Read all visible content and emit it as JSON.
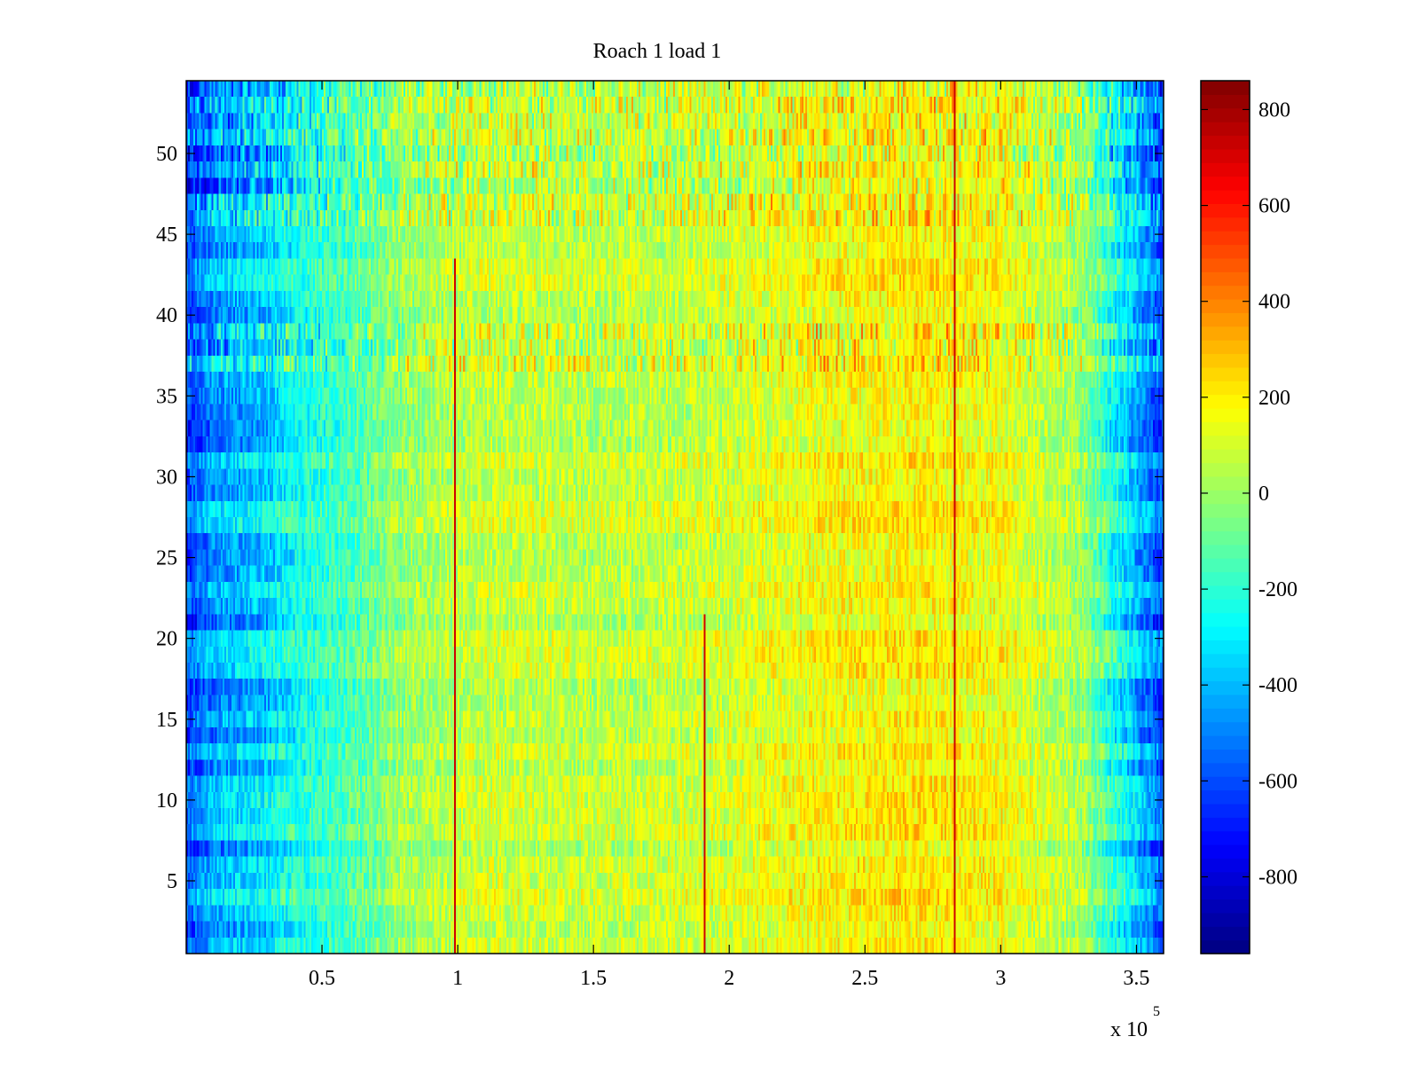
{
  "chart_data": {
    "type": "heatmap",
    "title": "Roach 1 load 1",
    "xlabel": "",
    "ylabel": "",
    "x_exponent_label": "x 10",
    "x_exponent": "5",
    "xlim": [
      0,
      360000
    ],
    "ylim": [
      0.5,
      54.5
    ],
    "rows": 54,
    "x_ticks": [
      {
        "value": 50000,
        "label": "0.5"
      },
      {
        "value": 100000,
        "label": "1"
      },
      {
        "value": 150000,
        "label": "1.5"
      },
      {
        "value": 200000,
        "label": "2"
      },
      {
        "value": 250000,
        "label": "2.5"
      },
      {
        "value": 300000,
        "label": "3"
      },
      {
        "value": 350000,
        "label": "3.5"
      }
    ],
    "y_ticks": [
      {
        "value": 5,
        "label": "5"
      },
      {
        "value": 10,
        "label": "10"
      },
      {
        "value": 15,
        "label": "15"
      },
      {
        "value": 20,
        "label": "20"
      },
      {
        "value": 25,
        "label": "25"
      },
      {
        "value": 30,
        "label": "30"
      },
      {
        "value": 35,
        "label": "35"
      },
      {
        "value": 40,
        "label": "40"
      },
      {
        "value": 45,
        "label": "45"
      },
      {
        "value": 50,
        "label": "50"
      }
    ],
    "colorbar": {
      "colormap": "jet",
      "clim": [
        -960,
        860
      ],
      "ticks": [
        {
          "value": 800,
          "label": "800"
        },
        {
          "value": 600,
          "label": "600"
        },
        {
          "value": 400,
          "label": "400"
        },
        {
          "value": 200,
          "label": "200"
        },
        {
          "value": 0,
          "label": "0"
        },
        {
          "value": -200,
          "label": "-200"
        },
        {
          "value": -400,
          "label": "-400"
        },
        {
          "value": -600,
          "label": "-600"
        },
        {
          "value": -800,
          "label": "-800"
        }
      ]
    },
    "approx_profile": {
      "description_free": true,
      "x": [
        0,
        10000,
        30000,
        40000,
        60000,
        80000,
        110000,
        150000,
        190000,
        230000,
        270000,
        300000,
        330000,
        345000,
        360000
      ],
      "value": [
        -600,
        -450,
        -350,
        -250,
        -150,
        0,
        80,
        60,
        80,
        160,
        200,
        160,
        0,
        -300,
        -600
      ]
    },
    "spike_columns_x": [
      99000,
      191000,
      283000
    ],
    "spike_rows": [
      [
        1,
        43
      ],
      [
        1,
        21
      ],
      [
        1,
        54
      ]
    ]
  }
}
